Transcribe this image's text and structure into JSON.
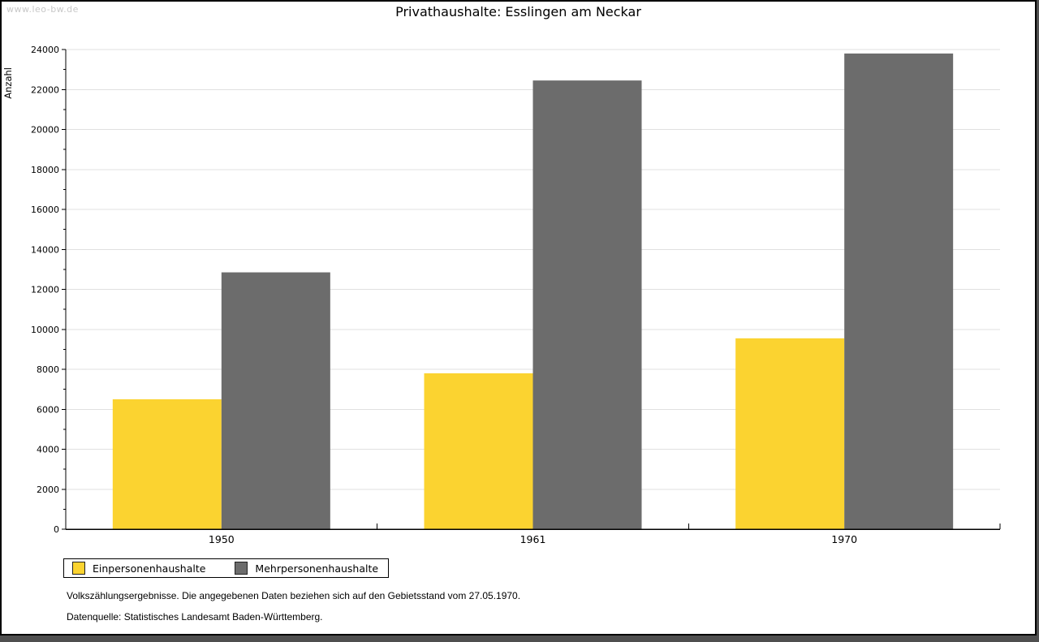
{
  "page": {
    "watermark": "www.leo-bw.de",
    "title": "Privathaushalte: Esslingen am Neckar"
  },
  "chart_data": {
    "type": "bar",
    "title": "Privathaushalte: Esslingen am Neckar",
    "categories": [
      "1950",
      "1961",
      "1970"
    ],
    "series": [
      {
        "name": "Einpersonenhaushalte",
        "color": "#FBD330",
        "values": [
          6500,
          7800,
          9550
        ]
      },
      {
        "name": "Mehrpersonenhaushalte",
        "color": "#6C6C6C",
        "values": [
          12850,
          22450,
          23800
        ]
      }
    ],
    "xlabel": "",
    "ylabel": "Anzahl",
    "ylim": [
      0,
      24000
    ],
    "ytick_step": 2000,
    "yminor_step": 1000,
    "grid": "horizontal-major",
    "grid_color": "#E0E0E0",
    "axis_color": "#000000",
    "legend_position": "below-left",
    "bar_edge": "none"
  },
  "footer": {
    "line1": "Volkszählungsergebnisse. Die angegebenen Daten beziehen sich auf den Gebietsstand vom 27.05.1970.",
    "line2": "Datenquelle: Statistisches Landesamt Baden-Württemberg."
  }
}
